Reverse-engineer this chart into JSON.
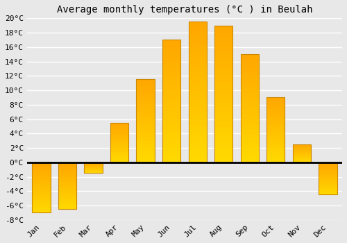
{
  "title": "Average monthly temperatures (°C ) in Beulah",
  "months": [
    "Jan",
    "Feb",
    "Mar",
    "Apr",
    "May",
    "Jun",
    "Jul",
    "Aug",
    "Sep",
    "Oct",
    "Nov",
    "Dec"
  ],
  "values": [
    -7.0,
    -6.5,
    -1.5,
    5.5,
    11.5,
    17.0,
    19.5,
    19.0,
    15.0,
    9.0,
    2.5,
    -4.5
  ],
  "bar_color_top": "#FFBE00",
  "bar_color_bottom": "#FFA000",
  "bar_edge_color": "#CC8800",
  "ylim": [
    -8,
    20
  ],
  "yticks": [
    -8,
    -6,
    -4,
    -2,
    0,
    2,
    4,
    6,
    8,
    10,
    12,
    14,
    16,
    18,
    20
  ],
  "background_color": "#e8e8e8",
  "plot_bg_color": "#e8e8e8",
  "grid_color": "#ffffff",
  "title_fontsize": 10,
  "tick_fontsize": 8,
  "figsize": [
    5.0,
    3.5
  ],
  "dpi": 100
}
